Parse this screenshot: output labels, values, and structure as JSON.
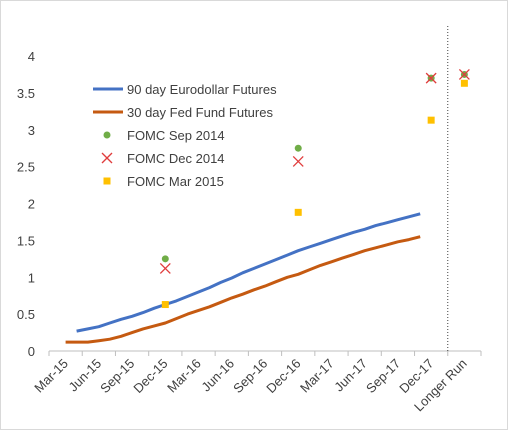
{
  "chart_data": {
    "type": "line",
    "categories": [
      "Mar-15",
      "Jun-15",
      "Sep-15",
      "Dec-15",
      "Mar-16",
      "Jun-16",
      "Sep-16",
      "Dec-16",
      "Mar-17",
      "Jun-17",
      "Sep-17",
      "Dec-17",
      "Longer Run"
    ],
    "ylim": [
      0,
      4
    ],
    "yticks": [
      "0",
      "0.5",
      "1",
      "1.5",
      "2",
      "2.5",
      "3",
      "3.5",
      "4"
    ],
    "grid": false,
    "legend_position": "top-left",
    "series": [
      {
        "name": "90 day Eurodollar Futures",
        "kind": "line",
        "color": "#4472c4",
        "points": [
          [
            0.33,
            0.27
          ],
          [
            0.67,
            0.3
          ],
          [
            1.0,
            0.33
          ],
          [
            1.33,
            0.38
          ],
          [
            1.67,
            0.43
          ],
          [
            2.0,
            0.47
          ],
          [
            2.33,
            0.52
          ],
          [
            2.67,
            0.58
          ],
          [
            3.0,
            0.63
          ],
          [
            3.33,
            0.68
          ],
          [
            3.67,
            0.74
          ],
          [
            4.0,
            0.8
          ],
          [
            4.33,
            0.86
          ],
          [
            4.67,
            0.93
          ],
          [
            5.0,
            0.99
          ],
          [
            5.33,
            1.06
          ],
          [
            5.67,
            1.12
          ],
          [
            6.0,
            1.18
          ],
          [
            6.33,
            1.24
          ],
          [
            6.67,
            1.3
          ],
          [
            7.0,
            1.36
          ],
          [
            7.33,
            1.41
          ],
          [
            7.67,
            1.46
          ],
          [
            8.0,
            1.51
          ],
          [
            8.33,
            1.56
          ],
          [
            8.67,
            1.61
          ],
          [
            9.0,
            1.65
          ],
          [
            9.33,
            1.7
          ],
          [
            9.67,
            1.74
          ],
          [
            10.0,
            1.78
          ],
          [
            10.33,
            1.82
          ],
          [
            10.67,
            1.86
          ]
        ]
      },
      {
        "name": "30 day Fed Fund Futures",
        "kind": "line",
        "color": "#c55a11",
        "points": [
          [
            0.0,
            0.12
          ],
          [
            0.33,
            0.12
          ],
          [
            0.67,
            0.12
          ],
          [
            1.0,
            0.14
          ],
          [
            1.33,
            0.16
          ],
          [
            1.67,
            0.2
          ],
          [
            2.0,
            0.25
          ],
          [
            2.33,
            0.3
          ],
          [
            2.67,
            0.34
          ],
          [
            3.0,
            0.38
          ],
          [
            3.33,
            0.44
          ],
          [
            3.67,
            0.5
          ],
          [
            4.0,
            0.55
          ],
          [
            4.33,
            0.6
          ],
          [
            4.67,
            0.66
          ],
          [
            5.0,
            0.72
          ],
          [
            5.33,
            0.77
          ],
          [
            5.67,
            0.83
          ],
          [
            6.0,
            0.88
          ],
          [
            6.33,
            0.94
          ],
          [
            6.67,
            1.0
          ],
          [
            7.0,
            1.04
          ],
          [
            7.33,
            1.1
          ],
          [
            7.67,
            1.16
          ],
          [
            8.0,
            1.21
          ],
          [
            8.33,
            1.26
          ],
          [
            8.67,
            1.31
          ],
          [
            9.0,
            1.36
          ],
          [
            9.33,
            1.4
          ],
          [
            9.67,
            1.44
          ],
          [
            10.0,
            1.48
          ],
          [
            10.33,
            1.51
          ],
          [
            10.67,
            1.55
          ]
        ]
      },
      {
        "name": "FOMC Sep 2014",
        "kind": "marker",
        "marker": "circle",
        "color": "#70ad47",
        "points": [
          [
            3.0,
            1.25
          ],
          [
            7.0,
            2.75
          ],
          [
            11.0,
            3.7
          ],
          [
            12.0,
            3.75
          ]
        ]
      },
      {
        "name": "FOMC Dec 2014",
        "kind": "marker",
        "marker": "x",
        "color": "#e03c3c",
        "points": [
          [
            3.0,
            1.12
          ],
          [
            7.0,
            2.57
          ],
          [
            11.0,
            3.7
          ],
          [
            12.0,
            3.75
          ]
        ]
      },
      {
        "name": "FOMC Mar 2015",
        "kind": "marker",
        "marker": "square",
        "color": "#ffc000",
        "points": [
          [
            3.0,
            0.63
          ],
          [
            7.0,
            1.88
          ],
          [
            11.0,
            3.13
          ],
          [
            12.0,
            3.63
          ]
        ]
      }
    ]
  }
}
